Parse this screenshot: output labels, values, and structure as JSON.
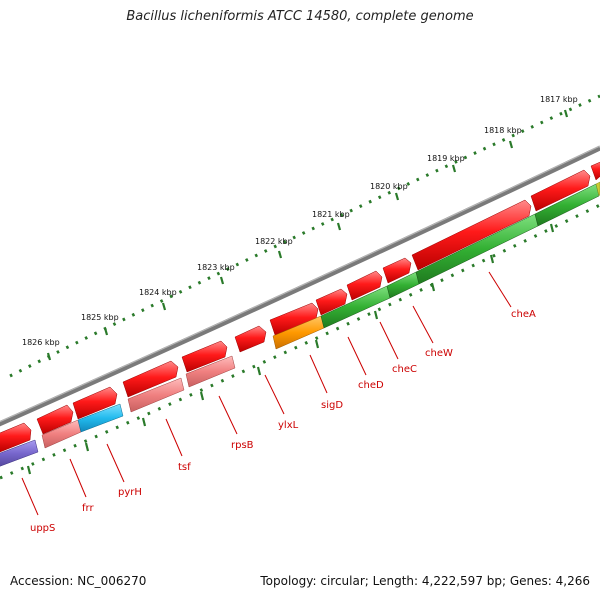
{
  "title": "Bacillus licheniformis ATCC 14580, complete genome",
  "footer": {
    "accession": "Accession: NC_006270",
    "summary": "Topology: circular; Length: 4,222,597 bp; Genes: 4,266"
  },
  "scale_labels": [
    "1817 kbp",
    "1818 kbp",
    "1819 kbp",
    "1820 kbp",
    "1821 kbp",
    "1822 kbp",
    "1823 kbp",
    "1824 kbp",
    "1825 kbp",
    "1826 kbp"
  ],
  "gene_labels": [
    "cheA",
    "cheW",
    "cheC",
    "cheD",
    "sigD",
    "ylxL",
    "rpsB",
    "tsf",
    "pyrH",
    "frr",
    "uppS"
  ],
  "colors": {
    "backbone": "#7a7a7a",
    "forward_gene": "#ff0000",
    "reverse_gene_green": "#33b033",
    "reverse_gene_pink": "#f08080",
    "reverse_gene_cyan": "#22bbee",
    "reverse_gene_orange": "#ff9900",
    "reverse_gene_purple": "#7766cc",
    "tick": "#2a7a2a",
    "label": "#cc0000"
  }
}
